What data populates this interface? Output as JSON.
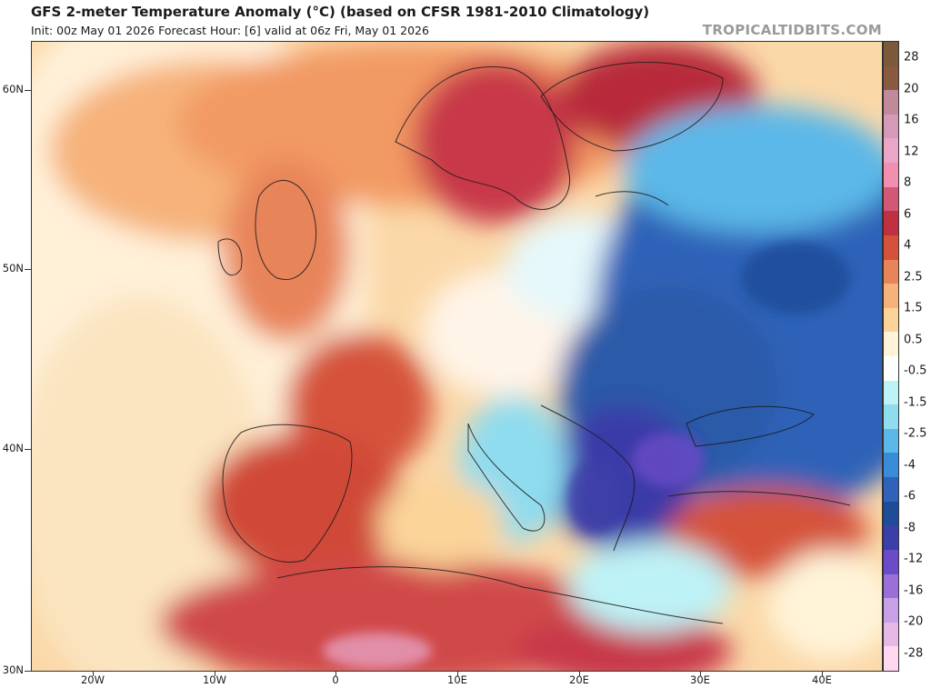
{
  "header": {
    "title": "GFS 2-meter Temperature Anomaly (°C) (based on CFSR 1981-2010 Climatology)",
    "subtitle": "Init: 00z May 01 2026   Forecast Hour: [6]   valid at 06z Fri, May 01 2026",
    "brand": "TROPICALTIDBITS.COM"
  },
  "map": {
    "region": "Europe, North Africa, Middle East",
    "lat_labels": [
      "60N",
      "50N",
      "40N",
      "30N"
    ],
    "lon_labels": [
      "20W",
      "10W",
      "0",
      "10E",
      "20E",
      "30E",
      "40E"
    ]
  },
  "colorbar": {
    "labels": [
      "28",
      "20",
      "16",
      "12",
      "8",
      "6",
      "4",
      "2.5",
      "1.5",
      "0.5",
      "-0.5",
      "-1.5",
      "-2.5",
      "-4",
      "-6",
      "-8",
      "-12",
      "-16",
      "-20",
      "-28"
    ],
    "colors": [
      "#7a5a3a",
      "#8a5a40",
      "#c08a9a",
      "#d59ab8",
      "#e9a6c6",
      "#f08fb0",
      "#d35878",
      "#c03040",
      "#d5523a",
      "#e8845a",
      "#f6b27a",
      "#fbd49a",
      "#fff4d8",
      "#ffffff",
      "#bdf2f6",
      "#8fdcef",
      "#5cb8e8",
      "#3a8cd8",
      "#2f62b8",
      "#1f4c98",
      "#3a40a8",
      "#6a4cc8",
      "#9a70d8",
      "#c7a0e8",
      "#e6b8e6",
      "#ffd8f0"
    ]
  }
}
